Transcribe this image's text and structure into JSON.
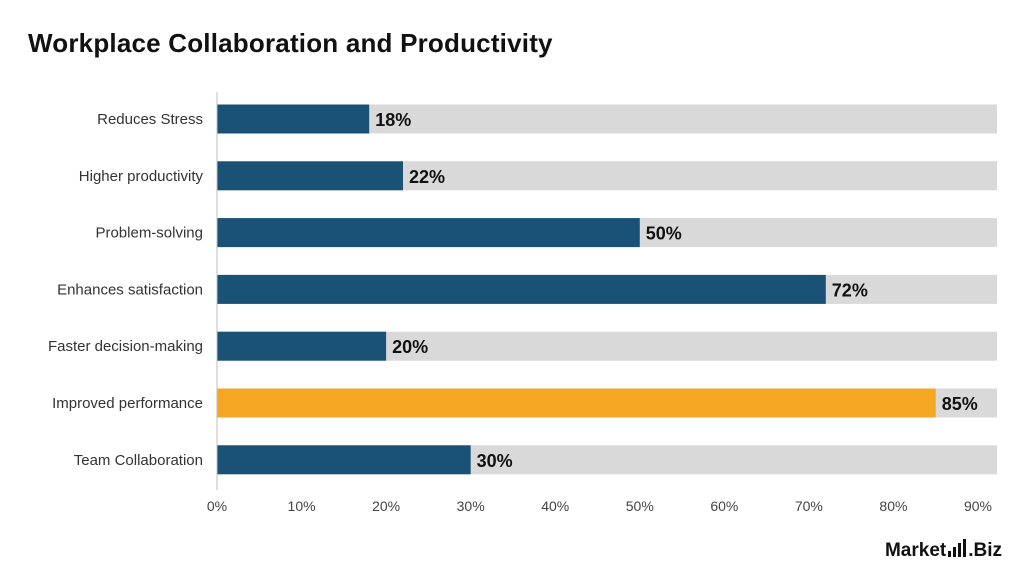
{
  "chart_data": {
    "type": "bar",
    "orientation": "horizontal",
    "title": "Workplace Collaboration and Productivity",
    "categories": [
      "Reduces Stress",
      "Higher productivity",
      "Problem-solving",
      "Enhances satisfaction",
      "Faster decision-making",
      "Improved performance",
      "Team Collaboration"
    ],
    "values": [
      18,
      22,
      50,
      72,
      20,
      85,
      30
    ],
    "value_labels": [
      "18%",
      "22%",
      "50%",
      "72%",
      "20%",
      "85%",
      "30%"
    ],
    "highlight_index": 5,
    "xlim": [
      0,
      90
    ],
    "xticks": [
      0,
      10,
      20,
      30,
      40,
      50,
      60,
      70,
      80,
      90
    ],
    "xtick_labels": [
      "0%",
      "10%",
      "20%",
      "30%",
      "40%",
      "50%",
      "60%",
      "70%",
      "80%",
      "90%"
    ],
    "grid": false,
    "legend": "none",
    "colors": {
      "bar": "#1a5276",
      "highlight": "#f5a623",
      "track": "#d9d9d9",
      "axis": "#bfbfbf"
    }
  },
  "brand": {
    "name": "Market",
    "suffix": ".Biz"
  }
}
